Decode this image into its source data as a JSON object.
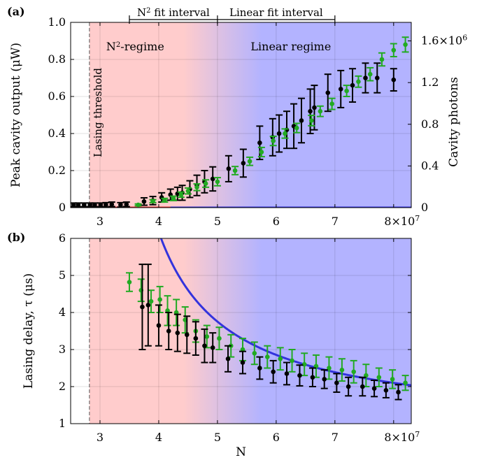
{
  "figure": {
    "panel_a_label": "(a)",
    "panel_b_label": "(b)",
    "xlabel": "N",
    "x_ticks": [
      "3",
      "4",
      "5",
      "6",
      "7"
    ],
    "x_last_tick_base": "8×10",
    "x_last_tick_exp": "7",
    "fit_interval_n2_prefix": "N",
    "fit_interval_n2_sup": "2",
    "fit_interval_n2_suffix": " fit interval",
    "fit_interval_linear": "Linear fit interval",
    "threshold_label": "Lasing threshold",
    "regime_n2_prefix": "N",
    "regime_n2_sup": "2",
    "regime_n2_suffix": "-regime",
    "regime_linear": "Linear regime",
    "colors": {
      "red_region": "#ffcccc",
      "blue_region": "#b3b3ff",
      "red_fit": "#e8393d",
      "blue_fit": "#3333dd",
      "green_data": "#22aa22",
      "black_data": "#000000"
    }
  },
  "chart_data": [
    {
      "type": "scatter",
      "panel": "a",
      "ylabel": "Peak cavity output (μW)",
      "y2label": "Cavity photons",
      "xlim": [
        25000000,
        83000000
      ],
      "ylim": [
        0,
        1.0
      ],
      "y_ticks": [
        "0",
        "0.2",
        "0.4",
        "0.6",
        "0.8",
        "1.0"
      ],
      "y2_ticks": [
        "0",
        "0.4",
        "0.8",
        "1.2"
      ],
      "y2_top_base": "1.6×10",
      "y2_top_exp": "6",
      "threshold_x": 28200000,
      "n2_fit_interval": [
        35000000,
        50000000
      ],
      "linear_fit_interval": [
        50000000,
        70000000
      ],
      "series": [
        {
          "color": "black",
          "x": [
            25500000,
            26300000,
            27300000,
            28300000,
            29100000,
            30100000,
            31000000,
            32000000,
            33500000,
            34500000,
            37500000,
            39000000,
            40500000,
            42000000,
            43200000,
            44000000,
            45300000,
            46500000,
            47800000,
            49200000,
            51900000,
            54400000,
            57200000,
            59400000,
            60500000,
            61800000,
            63000000,
            64300000,
            65800000,
            66500000,
            68800000,
            71000000,
            73000000,
            75200000,
            77200000,
            80000000
          ],
          "y": [
            0.015,
            0.015,
            0.015,
            0.015,
            0.015,
            0.015,
            0.015,
            0.018,
            0.015,
            0.018,
            0.033,
            0.038,
            0.055,
            0.07,
            0.075,
            0.08,
            0.1,
            0.12,
            0.14,
            0.155,
            0.21,
            0.24,
            0.35,
            0.38,
            0.4,
            0.42,
            0.44,
            0.47,
            0.52,
            0.54,
            0.62,
            0.64,
            0.66,
            0.7,
            0.7,
            0.69
          ],
          "err": [
            0.01,
            0.01,
            0.01,
            0.01,
            0.01,
            0.01,
            0.012,
            0.012,
            0.012,
            0.012,
            0.02,
            0.022,
            0.025,
            0.03,
            0.035,
            0.04,
            0.045,
            0.055,
            0.06,
            0.065,
            0.07,
            0.075,
            0.09,
            0.1,
            0.1,
            0.1,
            0.12,
            0.12,
            0.12,
            0.12,
            0.1,
            0.1,
            0.09,
            0.08,
            0.08,
            0.06
          ]
        },
        {
          "color": "green",
          "x": [
            36500000,
            39000000,
            41000000,
            42500000,
            43800000,
            45000000,
            46500000,
            48000000,
            50000000,
            53000000,
            55500000,
            57500000,
            59500000,
            61500000,
            63500000,
            66000000,
            67500000,
            69500000,
            72000000,
            74000000,
            76000000,
            78000000,
            80000000,
            82000000
          ],
          "y": [
            0.015,
            0.035,
            0.04,
            0.05,
            0.07,
            0.09,
            0.11,
            0.13,
            0.14,
            0.2,
            0.25,
            0.3,
            0.36,
            0.4,
            0.43,
            0.47,
            0.52,
            0.56,
            0.63,
            0.68,
            0.72,
            0.8,
            0.85,
            0.88
          ],
          "err": [
            0.005,
            0.008,
            0.01,
            0.012,
            0.014,
            0.016,
            0.018,
            0.02,
            0.022,
            0.022,
            0.022,
            0.025,
            0.025,
            0.025,
            0.025,
            0.028,
            0.028,
            0.03,
            0.03,
            0.03,
            0.035,
            0.035,
            0.035,
            0.04
          ]
        }
      ],
      "fits": [
        {
          "color": "red",
          "kind": "quadratic",
          "x0": 34000000,
          "a": 2.77e-16
        },
        {
          "color": "blue",
          "kind": "linear",
          "slope": 2.6e-08,
          "x0": 43000000
        }
      ]
    },
    {
      "type": "scatter",
      "panel": "b",
      "ylabel": "Lasing delay, τ (μs)",
      "xlim": [
        25000000,
        83000000
      ],
      "ylim": [
        1,
        6
      ],
      "y_ticks": [
        "1",
        "2",
        "3",
        "4",
        "5",
        "6"
      ],
      "series": [
        {
          "color": "green",
          "x": [
            35000000,
            37000000,
            38700000,
            40200000,
            41500000,
            43000000,
            44500000,
            46300000,
            48200000,
            50300000,
            52300000,
            54300000,
            56300000,
            58500000,
            60700000,
            62700000,
            64800000,
            66800000,
            69000000,
            71200000,
            73200000,
            75300000,
            77500000,
            79800000,
            82000000
          ],
          "y": [
            4.82,
            4.6,
            4.3,
            4.35,
            4.05,
            4.0,
            3.8,
            3.5,
            3.35,
            3.3,
            3.1,
            3.0,
            2.9,
            2.8,
            2.75,
            2.7,
            2.6,
            2.55,
            2.5,
            2.45,
            2.4,
            2.3,
            2.25,
            2.2,
            2.1
          ],
          "err": [
            0.25,
            0.3,
            0.3,
            0.35,
            0.4,
            0.35,
            0.35,
            0.3,
            0.3,
            0.3,
            0.3,
            0.3,
            0.3,
            0.3,
            0.3,
            0.3,
            0.3,
            0.3,
            0.3,
            0.3,
            0.3,
            0.3,
            0.25,
            0.25,
            0.2
          ]
        },
        {
          "color": "black",
          "x": [
            37200000,
            38200000,
            40000000,
            41700000,
            43200000,
            44800000,
            46300000,
            47800000,
            49200000,
            51800000,
            54300000,
            57200000,
            59500000,
            61800000,
            64000000,
            66200000,
            68200000,
            70300000,
            72300000,
            74700000,
            76700000,
            78700000,
            80800000
          ],
          "y": [
            4.15,
            4.2,
            3.65,
            3.5,
            3.45,
            3.4,
            3.3,
            3.1,
            3.05,
            2.75,
            2.65,
            2.5,
            2.4,
            2.35,
            2.3,
            2.25,
            2.2,
            2.1,
            2.0,
            2.0,
            1.95,
            1.9,
            1.85
          ],
          "err": [
            1.15,
            1.1,
            0.55,
            0.5,
            0.5,
            0.5,
            0.45,
            0.45,
            0.4,
            0.35,
            0.3,
            0.3,
            0.3,
            0.3,
            0.28,
            0.25,
            0.25,
            0.25,
            0.25,
            0.25,
            0.22,
            0.2,
            0.2
          ]
        }
      ],
      "fits": [
        {
          "color": "blue",
          "kind": "hyperbolic",
          "a": 62200000.0,
          "b": 0.9,
          "n0": 28200000
        }
      ]
    }
  ]
}
